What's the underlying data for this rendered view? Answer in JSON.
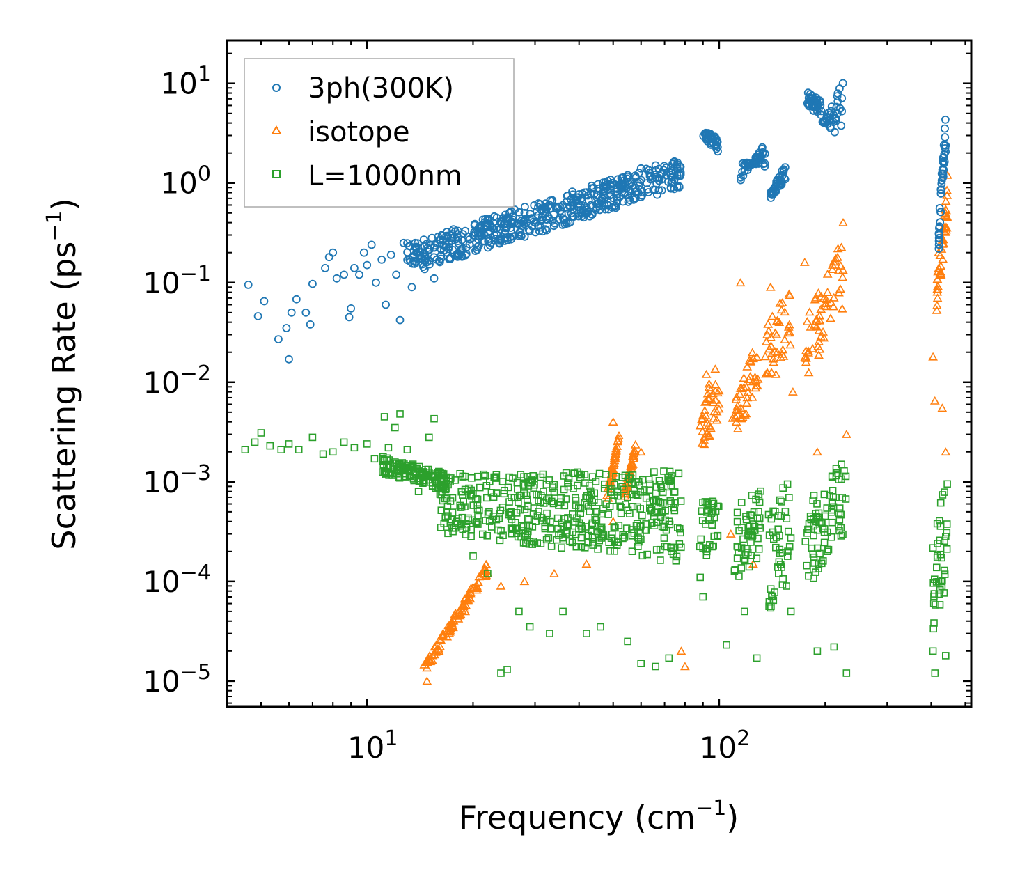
{
  "chart_data": {
    "type": "scatter",
    "xscale": "log",
    "yscale": "log",
    "xlim": [
      4,
      520
    ],
    "ylim": [
      5.5e-06,
      27
    ],
    "xlabel": "Frequency (cm",
    "xlabel_exp": "−1",
    "xlabel_close": ")",
    "ylabel": "Scattering Rate (ps",
    "ylabel_exp": "−1",
    "ylabel_close": ")",
    "x_ticks": [
      {
        "base": "10",
        "exp": "1",
        "value": 10
      },
      {
        "base": "10",
        "exp": "2",
        "value": 100
      }
    ],
    "y_ticks": [
      {
        "base": "10",
        "exp": "1",
        "value": 10
      },
      {
        "base": "10",
        "exp": "0",
        "value": 1
      },
      {
        "base": "10",
        "exp": "−1",
        "value": 0.1
      },
      {
        "base": "10",
        "exp": "−2",
        "value": 0.01
      },
      {
        "base": "10",
        "exp": "−3",
        "value": 0.001
      },
      {
        "base": "10",
        "exp": "−4",
        "value": 0.0001
      },
      {
        "base": "10",
        "exp": "−5",
        "value": 1e-05
      }
    ],
    "legend_position": "top-left",
    "series": [
      {
        "name": "3ph(300K)",
        "marker": "circle",
        "color": "#1f77b4",
        "points": [
          [
            4.6,
            0.095
          ],
          [
            4.9,
            0.046
          ],
          [
            5.1,
            0.065
          ],
          [
            5.6,
            0.027
          ],
          [
            5.9,
            0.035
          ],
          [
            6.0,
            0.017
          ],
          [
            6.1,
            0.05
          ],
          [
            6.3,
            0.068
          ],
          [
            6.7,
            0.05
          ],
          [
            6.9,
            0.038
          ],
          [
            7.0,
            0.097
          ],
          [
            7.6,
            0.14
          ],
          [
            7.8,
            0.18
          ],
          [
            8.0,
            0.2
          ],
          [
            8.2,
            0.11
          ],
          [
            8.6,
            0.12
          ],
          [
            8.9,
            0.045
          ],
          [
            9.0,
            0.055
          ],
          [
            9.2,
            0.14
          ],
          [
            9.5,
            0.12
          ],
          [
            9.8,
            0.2
          ],
          [
            10.0,
            0.15
          ],
          [
            10.3,
            0.24
          ],
          [
            10.6,
            0.1
          ],
          [
            11.0,
            0.17
          ],
          [
            11.3,
            0.06
          ],
          [
            11.7,
            0.19
          ],
          [
            12.1,
            0.12
          ],
          [
            12.4,
            0.042
          ],
          [
            12.7,
            0.25
          ],
          [
            13.4,
            0.09
          ],
          [
            13.8,
            0.2
          ],
          [
            14.5,
            0.27
          ],
          [
            15.5,
            0.11
          ],
          [
            16.3,
            0.3
          ],
          [
            17.5,
            0.28
          ],
          [
            19.0,
            0.33
          ],
          [
            21.0,
            0.36
          ],
          [
            23.0,
            0.3
          ],
          [
            25.0,
            0.42
          ],
          [
            28.0,
            0.5
          ],
          [
            32.0,
            0.55
          ],
          [
            36.0,
            0.6
          ],
          [
            40.0,
            0.62
          ],
          [
            45.0,
            0.75
          ],
          [
            50.0,
            1.0
          ],
          [
            55.0,
            1.2
          ],
          [
            60.0,
            1.4
          ],
          [
            66.0,
            1.5
          ],
          [
            72.0,
            1.3
          ],
          [
            77.0,
            1.2
          ]
        ],
        "clusters": [
          {
            "x": [
              13,
              78
            ],
            "y_start": [
              0.12,
              0.9
            ],
            "y_end": [
              0.25,
              1.8
            ]
          },
          {
            "x": [
              90,
              100
            ],
            "y_start": [
              3.5,
              2.8
            ],
            "y_end": [
              2.8,
              2.0
            ]
          },
          {
            "x": [
              115,
              135
            ],
            "y_start": [
              1.0,
              2.6
            ],
            "y_end": [
              1.7,
              1.4
            ]
          },
          {
            "x": [
              140,
              155
            ],
            "y_start": [
              0.8,
              1.6
            ],
            "y_end": [
              0.7,
              1.1
            ]
          },
          {
            "x": [
              178,
              195
            ],
            "y_start": [
              8.5,
              7.0
            ],
            "y_end": [
              6.0,
              4.5
            ]
          },
          {
            "x": [
              195,
              225
            ],
            "y_start": [
              4.5,
              2.5
            ],
            "y_end": [
              3.5,
              12.0
            ]
          },
          {
            "x": [
              420,
              440
            ],
            "y_start": [
              0.4,
              5.5
            ],
            "y_end": [
              0.2,
              2.0
            ]
          }
        ]
      },
      {
        "name": "isotope",
        "marker": "triangle",
        "color": "#ff7f0e",
        "points": [
          [
            14.8,
            1e-05
          ],
          [
            16.0,
            2e-05
          ],
          [
            17.5,
            3.5e-05
          ],
          [
            19.0,
            5e-05
          ],
          [
            20.5,
            9e-05
          ],
          [
            22.0,
            0.00012
          ],
          [
            24.0,
            9e-05
          ],
          [
            28.0,
            0.0001
          ],
          [
            34.0,
            0.00012
          ],
          [
            42.0,
            0.00015
          ],
          [
            50.0,
            0.0004
          ],
          [
            50.0,
            0.004
          ],
          [
            55.0,
            0.0009
          ],
          [
            60.0,
            0.002
          ],
          [
            78.0,
            2e-05
          ],
          [
            80.0,
            1.4e-05
          ],
          [
            92.0,
            0.012
          ],
          [
            108.0,
            0.0003
          ],
          [
            115.0,
            0.1
          ],
          [
            125.0,
            0.00015
          ],
          [
            140.0,
            0.09
          ],
          [
            145.0,
            0.012
          ],
          [
            162.0,
            0.008
          ],
          [
            175.0,
            0.16
          ],
          [
            190.0,
            0.002
          ],
          [
            210.0,
            0.15
          ],
          [
            225.0,
            0.4
          ],
          [
            230.0,
            0.003
          ],
          [
            405.0,
            0.018
          ],
          [
            410.0,
            0.0065
          ],
          [
            420.0,
            0.2
          ],
          [
            430.0,
            0.0055
          ],
          [
            440.0,
            0.002
          ],
          [
            445.0,
            1.2
          ]
        ],
        "clusters": [
          {
            "x": [
              14.5,
              22
            ],
            "y_start": [
              1.2e-05,
              0.00012
            ],
            "y_end": [
              1.5e-05,
              0.00016
            ]
          },
          {
            "x": [
              48,
              52
            ],
            "y_start": [
              0.0005,
              0.003
            ],
            "y_end": [
              0.0008,
              0.003
            ]
          },
          {
            "x": [
              54,
              58
            ],
            "y_start": [
              0.0007,
              0.002
            ],
            "y_end": [
              0.0009,
              0.0025
            ]
          },
          {
            "x": [
              88,
              100
            ],
            "y_start": [
              0.002,
              0.004
            ],
            "y_end": [
              0.005,
              0.02
            ]
          },
          {
            "x": [
              108,
              130
            ],
            "y_start": [
              0.002,
              0.01
            ],
            "y_end": [
              0.006,
              0.03
            ]
          },
          {
            "x": [
              135,
              160
            ],
            "y_start": [
              0.01,
              0.02
            ],
            "y_end": [
              0.04,
              0.1
            ]
          },
          {
            "x": [
              175,
              225
            ],
            "y_start": [
              0.01,
              0.05
            ],
            "y_end": [
              0.04,
              0.3
            ]
          },
          {
            "x": [
              415,
              445
            ],
            "y_start": [
              0.05,
              0.4
            ],
            "y_end": [
              0.1,
              1.0
            ]
          }
        ]
      },
      {
        "name": "L=1000nm",
        "marker": "square",
        "color": "#2ca02c",
        "points": [
          [
            4.5,
            0.0021
          ],
          [
            4.8,
            0.0025
          ],
          [
            5.0,
            0.0031
          ],
          [
            5.3,
            0.0023
          ],
          [
            5.7,
            0.0021
          ],
          [
            6.0,
            0.0024
          ],
          [
            6.4,
            0.0021
          ],
          [
            7.0,
            0.0028
          ],
          [
            7.5,
            0.0019
          ],
          [
            8.0,
            0.002
          ],
          [
            8.6,
            0.0025
          ],
          [
            9.2,
            0.0022
          ],
          [
            10.0,
            0.0024
          ],
          [
            10.5,
            0.0017
          ],
          [
            11.2,
            0.0045
          ],
          [
            11.5,
            0.0022
          ],
          [
            12.0,
            0.0035
          ],
          [
            12.4,
            0.0048
          ],
          [
            13.0,
            0.0021
          ],
          [
            13.5,
            0.0015
          ],
          [
            14.0,
            0.0008
          ],
          [
            15.0,
            0.0028
          ],
          [
            15.5,
            0.0043
          ],
          [
            16.5,
            0.0012
          ],
          [
            18.0,
            0.0004
          ],
          [
            20.0,
            0.00018
          ],
          [
            22.0,
            0.00012
          ],
          [
            24.0,
            1.2e-05
          ],
          [
            25.0,
            1.3e-05
          ],
          [
            27.0,
            5e-05
          ],
          [
            29.0,
            3.5e-05
          ],
          [
            33.0,
            3e-05
          ],
          [
            36.0,
            5e-05
          ],
          [
            42.0,
            3e-05
          ],
          [
            46.0,
            3.5e-05
          ],
          [
            55.0,
            2.5e-05
          ],
          [
            60.0,
            1.5e-05
          ],
          [
            66.0,
            1.4e-05
          ],
          [
            72.0,
            1.7e-05
          ],
          [
            90.0,
            7e-05
          ],
          [
            105.0,
            2.3e-05
          ],
          [
            118.0,
            5e-05
          ],
          [
            128.0,
            1.7e-05
          ],
          [
            160.0,
            5e-05
          ],
          [
            190.0,
            2e-05
          ],
          [
            212.0,
            2.2e-05
          ],
          [
            230.0,
            1.2e-05
          ],
          [
            405.0,
            2e-05
          ],
          [
            410.0,
            1.2e-05
          ],
          [
            440.0,
            1.8e-05
          ]
        ],
        "clusters": [
          {
            "x": [
              11,
              17
            ],
            "y_start": [
              0.0012,
              0.0008
            ],
            "y_end": [
              0.0018,
              0.0012
            ]
          },
          {
            "x": [
              16,
              78
            ],
            "y_start": [
              0.0003,
              0.00015
            ],
            "y_end": [
              0.0012,
              0.0013
            ]
          },
          {
            "x": [
              88,
              100
            ],
            "y_start": [
              0.0001,
              0.0003
            ],
            "y_end": [
              0.0008,
              0.0006
            ]
          },
          {
            "x": [
              110,
              132
            ],
            "y_start": [
              8e-05,
              0.0002
            ],
            "y_end": [
              0.0006,
              0.0009
            ]
          },
          {
            "x": [
              138,
              160
            ],
            "y_start": [
              5e-05,
              0.0001
            ],
            "y_end": [
              0.0005,
              0.0012
            ]
          },
          {
            "x": [
              175,
              230
            ],
            "y_start": [
              8e-05,
              0.0003
            ],
            "y_end": [
              0.0006,
              0.0018
            ]
          },
          {
            "x": [
              405,
              445
            ],
            "y_start": [
              3e-05,
              0.0001
            ],
            "y_end": [
              0.0003,
              0.0015
            ]
          }
        ]
      }
    ]
  }
}
